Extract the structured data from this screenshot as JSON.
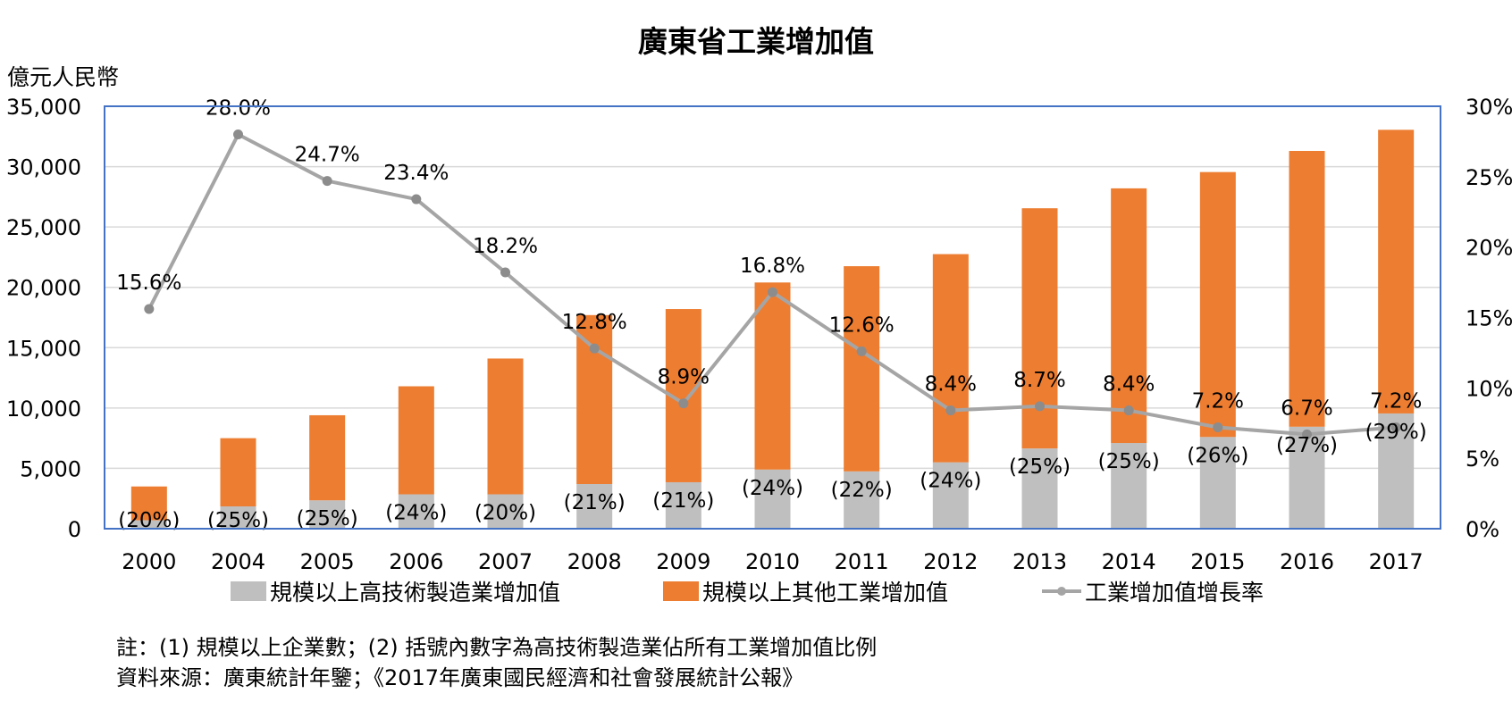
{
  "chart_data": {
    "type": "bar",
    "stacked": true,
    "title": "廣東省工業增加值",
    "ylabel": "億元人民幣",
    "ylim": [
      0,
      35000
    ],
    "y_ticks": [
      "0",
      "5,000",
      "10,000",
      "15,000",
      "20,000",
      "25,000",
      "30,000",
      "35,000"
    ],
    "y2lim": [
      0,
      30
    ],
    "y2_ticks": [
      "0%",
      "5%",
      "10%",
      "15%",
      "20%",
      "25%",
      "30%"
    ],
    "categories": [
      "2000",
      "2004",
      "2005",
      "2006",
      "2007",
      "2008",
      "2009",
      "2010",
      "2011",
      "2012",
      "2013",
      "2014",
      "2015",
      "2016",
      "2017"
    ],
    "series": [
      {
        "name": "規模以上高技術製造業增加值",
        "color": "#bfbfbf",
        "values": [
          700,
          1850,
          2350,
          2850,
          2850,
          3700,
          3850,
          4900,
          4750,
          5500,
          6650,
          7100,
          7600,
          8450,
          9550
        ]
      },
      {
        "name": "規模以上其他工業增加值",
        "color": "#ed7d31",
        "values": [
          2800,
          5650,
          7050,
          8950,
          11250,
          14000,
          14350,
          15500,
          17000,
          17250,
          19900,
          21100,
          21950,
          22850,
          23500
        ]
      },
      {
        "name": "工業增加值增長率",
        "type": "line",
        "axis": "right",
        "color": "#a5a5a5",
        "values": [
          15.6,
          28.0,
          24.7,
          23.4,
          18.2,
          12.8,
          8.9,
          16.8,
          12.6,
          8.4,
          8.7,
          8.4,
          7.2,
          6.7,
          7.2
        ]
      }
    ],
    "growth_labels": [
      "15.6%",
      "28.0%",
      "24.7%",
      "23.4%",
      "18.2%",
      "12.8%",
      "8.9%",
      "16.8%",
      "12.6%",
      "8.4%",
      "8.7%",
      "8.4%",
      "7.2%",
      "6.7%",
      "7.2%"
    ],
    "share_labels": [
      "(20%)",
      "(25%)",
      "(25%)",
      "(24%)",
      "(20%)",
      "(21%)",
      "(21%)",
      "(24%)",
      "(22%)",
      "(24%)",
      "(25%)",
      "(25%)",
      "(26%)",
      "(27%)",
      "(29%)"
    ],
    "legend_position": "bottom",
    "grid": true
  },
  "notes": {
    "note": "註：(1) 規模以上企業數；(2) 括號內數字為高技術製造業佔所有工業增加值比例",
    "source": "資料來源：廣東統計年鑒；《2017年廣東國民經濟和社會發展統計公報》"
  }
}
